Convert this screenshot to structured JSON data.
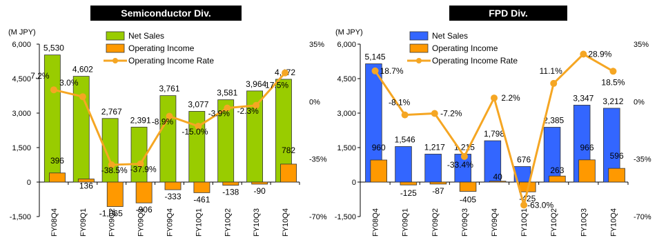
{
  "chart_data": [
    {
      "type": "bar",
      "title": "Semiconductor Div.",
      "unit_label": "(M JPY)",
      "categories": [
        "FY08Q4",
        "FY09Q1",
        "FY09Q2",
        "FY09Q3",
        "FY09Q4",
        "FY10Q1",
        "FY10Q2",
        "FY10Q3",
        "FY10Q4"
      ],
      "series": [
        {
          "name": "Net Sales",
          "kind": "bar",
          "color": "#99cc00",
          "values": [
            5530,
            4602,
            2767,
            2391,
            3761,
            3077,
            3581,
            3964,
            4472
          ],
          "labels": [
            "5,530",
            "4,602",
            "2,767",
            "2,391",
            "3,761",
            "3,077",
            "3,581",
            "3,964",
            "4,472"
          ]
        },
        {
          "name": "Operating Income",
          "kind": "bar",
          "color": "#ff9900",
          "values": [
            396,
            136,
            -1065,
            -906,
            -333,
            -461,
            -138,
            -90,
            782
          ],
          "labels": [
            "396",
            "136",
            "-1,065",
            "-906",
            "-333",
            "-461",
            "-138",
            "-90",
            "782"
          ]
        },
        {
          "name": "Operating Income Rate",
          "kind": "line",
          "axis": "right",
          "color": "#f5a623",
          "values": [
            7.2,
            3.0,
            -38.5,
            -37.9,
            -8.9,
            -15.0,
            -3.9,
            -2.3,
            17.5
          ],
          "labels": [
            "7.2%",
            "3.0%",
            "-38.5%",
            "-37.9%",
            "-8.9%",
            "-15.0%",
            "-3.9%",
            "-2.3%",
            "17.5%"
          ]
        }
      ],
      "ylim": [
        -1500,
        6000
      ],
      "yticks": [
        -1500,
        0,
        1500,
        3000,
        4500,
        6000
      ],
      "ytick_labels": [
        "-1,500",
        "0",
        "1,500",
        "3,000",
        "4,500",
        "6,000"
      ],
      "y2lim": [
        -70,
        35
      ],
      "y2ticks": [
        -70,
        -35,
        0,
        35
      ],
      "y2tick_labels": [
        "-70%",
        "-35%",
        "0%",
        "35%"
      ],
      "legend": "top-center"
    },
    {
      "type": "bar",
      "title": "FPD Div.",
      "unit_label": "(M JPY)",
      "categories": [
        "FY08Q4",
        "FY09Q1",
        "FY09Q2",
        "FY09Q3",
        "FY09Q4",
        "FY10Q1",
        "FY10Q2",
        "FY10Q3",
        "FY10Q4"
      ],
      "series": [
        {
          "name": "Net Sales",
          "kind": "bar",
          "color": "#3366ff",
          "values": [
            5145,
            1546,
            1217,
            1215,
            1798,
            676,
            2385,
            3347,
            3212
          ],
          "labels": [
            "5,145",
            "1,546",
            "1,217",
            "1,215",
            "1,798",
            "676",
            "2,385",
            "3,347",
            "3,212"
          ]
        },
        {
          "name": "Operating Income",
          "kind": "bar",
          "color": "#ff9900",
          "values": [
            960,
            -125,
            -87,
            -405,
            40,
            -425,
            263,
            966,
            596
          ],
          "labels": [
            "960",
            "-125",
            "-87",
            "-405",
            "40",
            "-425",
            "263",
            "966",
            "596"
          ]
        },
        {
          "name": "Operating Income Rate",
          "kind": "line",
          "axis": "right",
          "color": "#f5a623",
          "values": [
            18.7,
            -8.1,
            -7.2,
            -33.4,
            2.2,
            -63.0,
            11.1,
            28.9,
            18.5
          ],
          "labels": [
            "18.7%",
            "-8.1%",
            "-7.2%",
            "-33.4%",
            "2.2%",
            "-63.0%",
            "11.1%",
            "28.9%",
            "18.5%"
          ]
        }
      ],
      "ylim": [
        -1500,
        6000
      ],
      "yticks": [
        -1500,
        0,
        1500,
        3000,
        4500,
        6000
      ],
      "ytick_labels": [
        "-1,500",
        "0",
        "1,500",
        "3,000",
        "4,500",
        "6,000"
      ],
      "y2lim": [
        -70,
        35
      ],
      "y2ticks": [
        -70,
        -35,
        0,
        35
      ],
      "y2tick_labels": [
        "-70%",
        "-35%",
        "0%",
        "35%"
      ],
      "legend": "top-center"
    }
  ]
}
